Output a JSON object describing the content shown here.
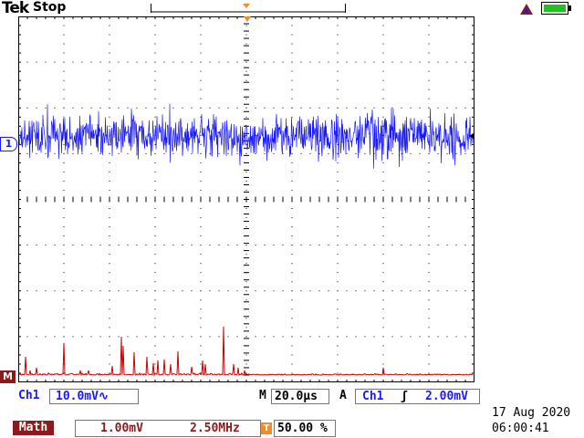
{
  "header": {
    "brand": "Tek",
    "acquisition_status": "Stop"
  },
  "markers": {
    "ch1": "1",
    "math": "M"
  },
  "status": {
    "ch1_label": "Ch1",
    "ch1_scale": "10.0mV∿",
    "timebase_label": "M",
    "timebase": "20.0µs",
    "trigger_mode": "A",
    "trigger_source": "Ch1",
    "trigger_slope": "ʃ",
    "trigger_level": "2.00mV",
    "math_label": "Math",
    "math_scale": "1.00mV",
    "math_freq": "2.50MHz",
    "trigger_position_icon": "T",
    "trigger_position": "50.00 %",
    "date": "17 Aug 2020",
    "time": "06:00:41"
  },
  "colors": {
    "ch1": "#1a1aff",
    "math": "#cc0000",
    "trigger": "#f28c28",
    "grid": "#000000"
  }
}
